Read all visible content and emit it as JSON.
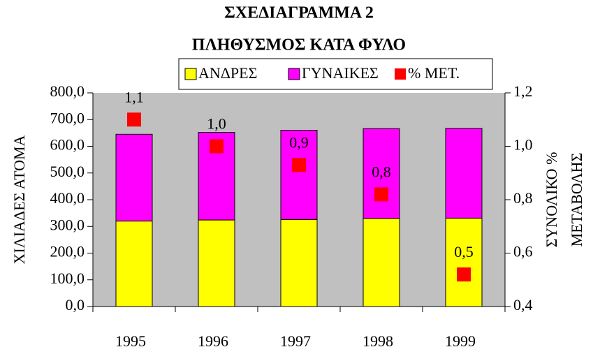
{
  "chart_data": {
    "type": "bar",
    "title": "ΣΧΕΔΙΑΓΡΑΜΜΑ 2",
    "subtitle": "ΠΛΗΘΥΣΜΟΣ ΚΑΤΑ ΦΥΛΟ",
    "y_label": "ΧΙΛΙΑΔΕΣ ΑΤΟΜΑ",
    "y2_label": [
      "ΣΥΝΟΛΙΚΟ %",
      "ΜΕΤΑΒΟΛΗΣ"
    ],
    "categories": [
      "1995",
      "1996",
      "1997",
      "1998",
      "1999"
    ],
    "stacked": true,
    "background": "#c0c0c0",
    "series": [
      {
        "name": "ΑΝΔΡΕΣ",
        "color": "#ffff00",
        "values": [
          320,
          324,
          326,
          330,
          331
        ]
      },
      {
        "name": "ΓΥΝΑΙΚΕΣ",
        "color": "#ff00ff",
        "values": [
          325,
          328,
          334,
          336,
          336
        ]
      },
      {
        "name": "% ΜΕΤ.",
        "color": "#ff0000",
        "axis": "y2",
        "marker": "square",
        "values": [
          1.1,
          1.0,
          0.93,
          0.82,
          0.52
        ],
        "value_labels": [
          "1,1",
          "1,0",
          "0,9",
          "0,8",
          "0,5"
        ]
      }
    ],
    "ylim": [
      0,
      800
    ],
    "yticks": [
      {
        "value": 0,
        "label": "0,0"
      },
      {
        "value": 100,
        "label": "100,0"
      },
      {
        "value": 200,
        "label": "200,0"
      },
      {
        "value": 300,
        "label": "300,0"
      },
      {
        "value": 400,
        "label": "400,0"
      },
      {
        "value": 500,
        "label": "500,0"
      },
      {
        "value": 600,
        "label": "600,0"
      },
      {
        "value": 700,
        "label": "700,0"
      },
      {
        "value": 800,
        "label": "800,0"
      }
    ],
    "y2lim": [
      0.4,
      1.2
    ],
    "y2ticks": [
      {
        "value": 0.4,
        "label": "0,4"
      },
      {
        "value": 0.6,
        "label": "0,6"
      },
      {
        "value": 0.8,
        "label": "0,8"
      },
      {
        "value": 1.0,
        "label": "1,0"
      },
      {
        "value": 1.2,
        "label": "1,2"
      }
    ],
    "legend": "top"
  }
}
